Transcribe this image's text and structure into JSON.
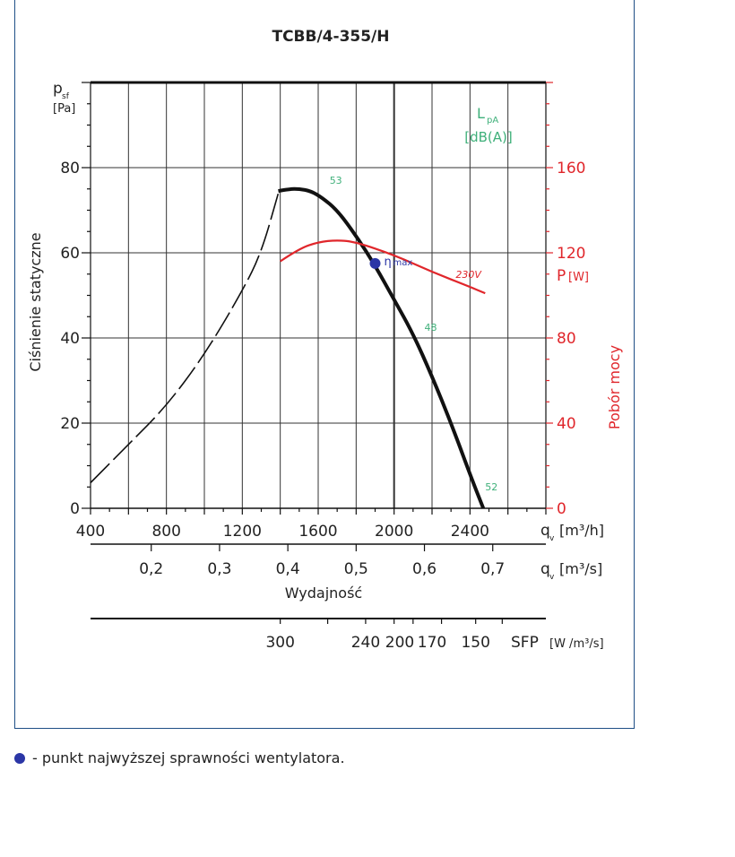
{
  "chart_data": {
    "type": "line",
    "title": "TCBB/4-355/H",
    "y_axis": {
      "symbol": "p",
      "symbol_sub": "sf",
      "unit": "[Pa]",
      "label": "Ciśnienie statyczne",
      "ylim": [
        0,
        100
      ],
      "ticks": [
        0,
        20,
        40,
        60,
        80
      ]
    },
    "x_axis": {
      "symbol": "q",
      "symbol_sub": "v",
      "unit": "[m³/h]",
      "xlim": [
        400,
        2800
      ],
      "ticks": [
        400,
        800,
        1200,
        1600,
        2000,
        2400
      ]
    },
    "x_axis_secondary": {
      "symbol": "q",
      "symbol_sub": "v",
      "unit": "[m³/s]",
      "label": "Wydajność",
      "ticks": [
        "0,2",
        "0,3",
        "0,4",
        "0,5",
        "0,6",
        "0,7"
      ],
      "tick_values_m3h": [
        720,
        1080,
        1440,
        1800,
        2160,
        2520
      ]
    },
    "sfp_axis": {
      "label": "SFP",
      "unit": "[W /m³/s]",
      "ticks": [
        "300",
        "240",
        "200",
        "170",
        "150"
      ],
      "tick_values_m3h": [
        1400,
        1850,
        2430,
        2570,
        2470
      ]
    },
    "power_axis": {
      "symbol": "P",
      "unit": "[W]",
      "label": "Pobór mocy",
      "ylim": [
        0,
        200
      ],
      "ticks": [
        0,
        40,
        80,
        120,
        160
      ]
    },
    "lpa_label": {
      "symbol": "L",
      "symbol_sub": "pA",
      "unit": "[dB(A)]"
    },
    "series": [
      {
        "role": "pressure-unstable",
        "style": "dashed",
        "color": "#111111",
        "x": [
          400,
          600,
          800,
          1000,
          1200,
          1300,
          1390
        ],
        "y": [
          6,
          15,
          24,
          36,
          51,
          60,
          74
        ]
      },
      {
        "role": "pressure",
        "style": "solid",
        "color": "#111111",
        "x": [
          1390,
          1450,
          1500,
          1560,
          1620,
          1700,
          1800,
          1900,
          2000,
          2100,
          2200,
          2300,
          2400,
          2470
        ],
        "y": [
          74.5,
          75,
          75,
          74.5,
          73,
          70,
          64,
          57,
          49,
          41,
          31,
          20,
          8,
          0
        ]
      },
      {
        "role": "power",
        "name": "230V",
        "style": "solid",
        "color": "#e0262b",
        "axis": "power",
        "x": [
          1400,
          1500,
          1600,
          1700,
          1800,
          2000,
          2200,
          2400,
          2480
        ],
        "y": [
          116,
          122,
          125,
          126,
          125,
          119,
          111,
          104,
          101
        ]
      }
    ],
    "sound_labels": [
      {
        "text": "53",
        "x": 1660,
        "y": 74.5
      },
      {
        "text": "48",
        "x": 2160,
        "y": 40
      },
      {
        "text": "52",
        "x": 2480,
        "y": 2.5
      }
    ],
    "max_efficiency_point": {
      "x": 1900,
      "y": 57.5,
      "label": "η",
      "label_sub": "max",
      "color": "#2b36a6"
    },
    "grid": true
  },
  "legend_note": {
    "text": "- punkt najwyższej sprawności wentylatora."
  }
}
